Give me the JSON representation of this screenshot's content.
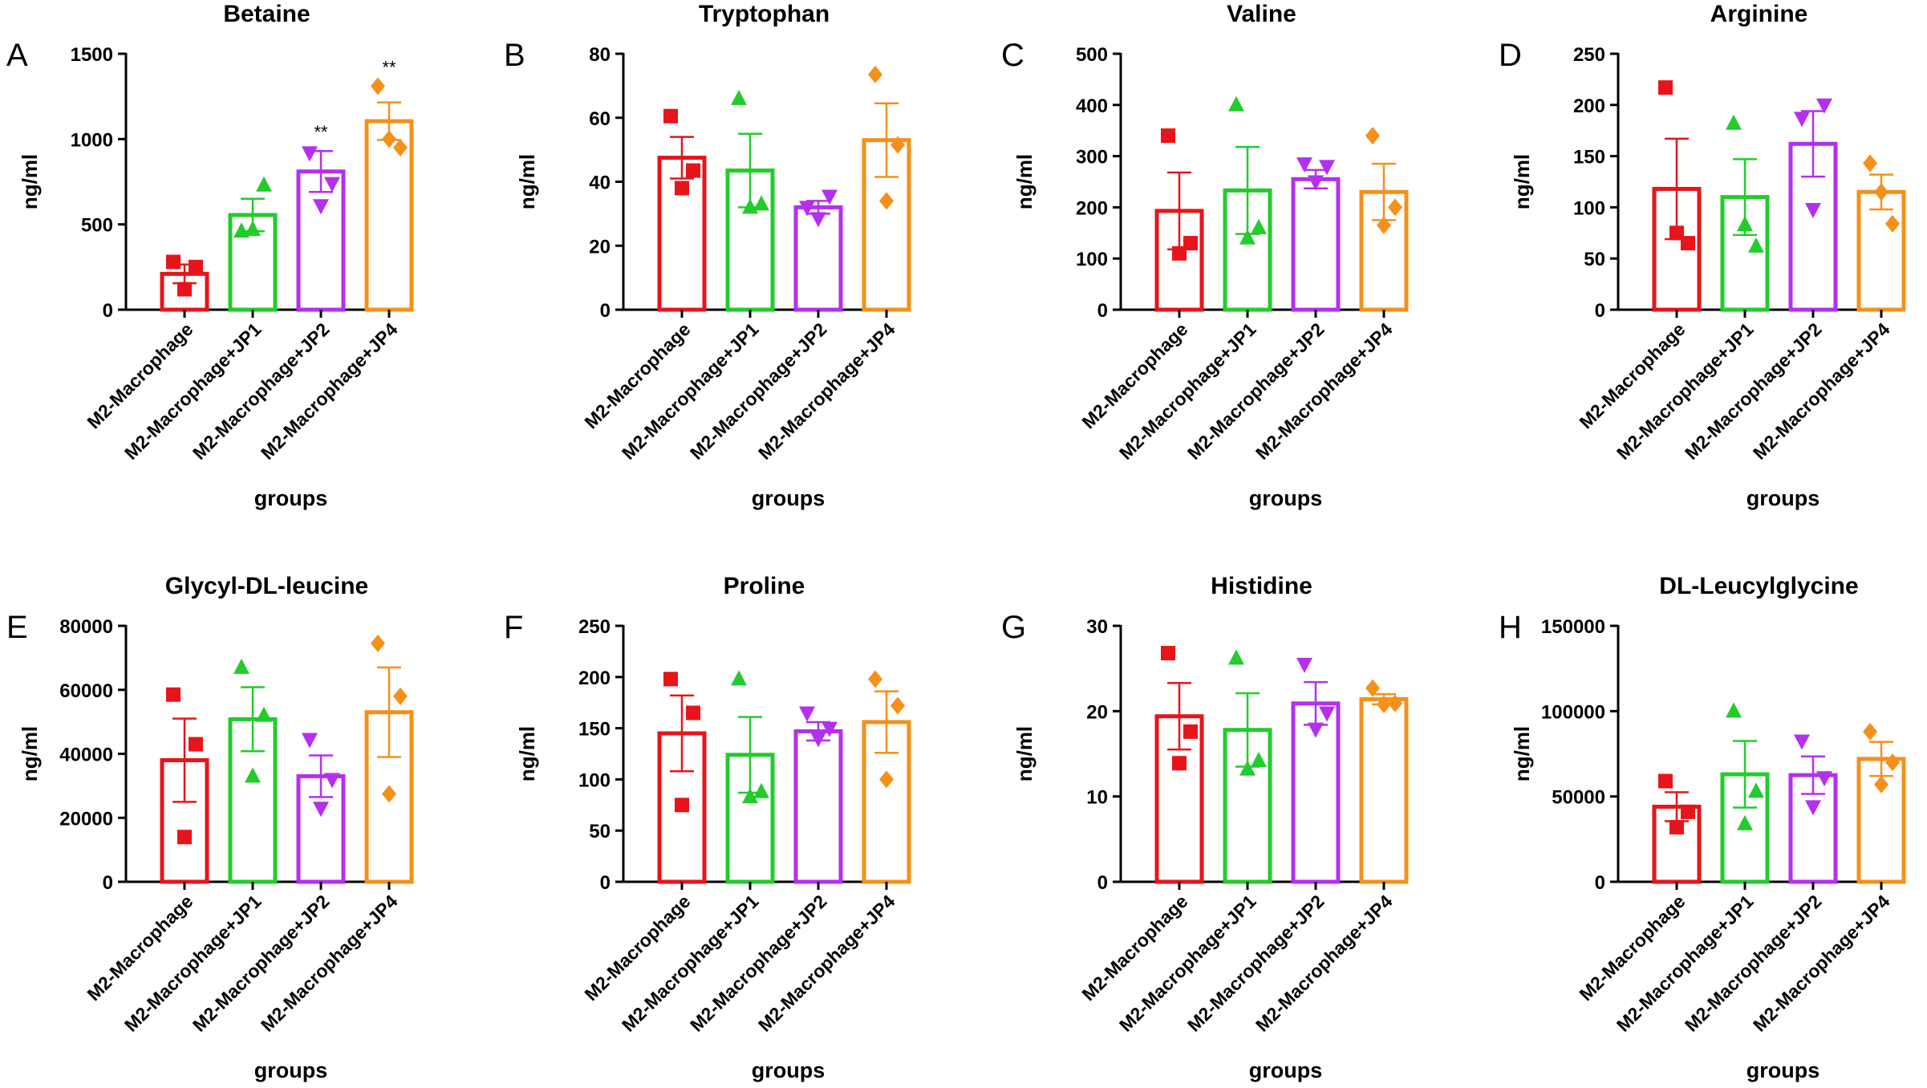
{
  "figure": {
    "group_colors": [
      "#e8141b",
      "#22cc2b",
      "#b42ff0",
      "#f5901a"
    ],
    "marker_shapes": [
      "square",
      "triangle-up",
      "triangle-down",
      "diamond"
    ]
  },
  "chart_data": [
    {
      "panel": "A",
      "type": "bar",
      "title": "Betaine",
      "xlabel": "groups",
      "ylabel": "ng/ml",
      "categories": [
        "M2-Macrophage",
        "M2-Macrophage+JP1",
        "M2-Macrophage+JP2",
        "M2-Macrophage+JP4"
      ],
      "ylim": [
        0,
        1500
      ],
      "yticks": [
        "0",
        "500",
        "1000",
        "1500"
      ],
      "means": [
        210,
        555,
        810,
        1105
      ],
      "sem": [
        55,
        95,
        120,
        110
      ],
      "points": [
        [
          280,
          120,
          250
        ],
        [
          460,
          470,
          730
        ],
        [
          920,
          610,
          740
        ],
        [
          1310,
          1000,
          950
        ]
      ],
      "annotations": [
        "",
        "",
        "**",
        "**"
      ]
    },
    {
      "panel": "B",
      "type": "bar",
      "title": "Tryptophan",
      "xlabel": "groups",
      "ylabel": "ng/ml",
      "categories": [
        "M2-Macrophage",
        "M2-Macrophage+JP1",
        "M2-Macrophage+JP2",
        "M2-Macrophage+JP4"
      ],
      "ylim": [
        0,
        80
      ],
      "yticks": [
        "0",
        "20",
        "40",
        "60",
        "80"
      ],
      "means": [
        47.5,
        43.5,
        32,
        53
      ],
      "sem": [
        6.5,
        11.5,
        2,
        11.5
      ],
      "points": [
        [
          60.5,
          38,
          43.5
        ],
        [
          66,
          32,
          33
        ],
        [
          32,
          28.5,
          35.5
        ],
        [
          73.5,
          34,
          51.5
        ]
      ],
      "annotations": [
        "",
        "",
        "",
        ""
      ]
    },
    {
      "panel": "C",
      "type": "bar",
      "title": "Valine",
      "xlabel": "groups",
      "ylabel": "ng/ml",
      "categories": [
        "M2-Macrophage",
        "M2-Macrophage+JP1",
        "M2-Macrophage+JP2",
        "M2-Macrophage+JP4"
      ],
      "ylim": [
        0,
        500
      ],
      "yticks": [
        "0",
        "100",
        "200",
        "300",
        "400",
        "500"
      ],
      "means": [
        193,
        233,
        255,
        230
      ],
      "sem": [
        75,
        85,
        18,
        55
      ],
      "points": [
        [
          340,
          110,
          130
        ],
        [
          400,
          140,
          160
        ],
        [
          285,
          250,
          280
        ],
        [
          340,
          165,
          200
        ]
      ],
      "annotations": [
        "",
        "",
        "",
        ""
      ]
    },
    {
      "panel": "D",
      "type": "bar",
      "title": "Arginine",
      "xlabel": "groups",
      "ylabel": "ng/ml",
      "categories": [
        "M2-Macrophage",
        "M2-Macrophage+JP1",
        "M2-Macrophage+JP2",
        "M2-Macrophage+JP4"
      ],
      "ylim": [
        0,
        250
      ],
      "yticks": [
        "0",
        "50",
        "100",
        "150",
        "200",
        "250"
      ],
      "means": [
        118,
        110,
        162,
        115
      ],
      "sem": [
        49,
        37,
        32,
        17
      ],
      "points": [
        [
          217,
          75,
          65
        ],
        [
          182,
          83,
          62
        ],
        [
          187,
          98,
          200
        ],
        [
          143,
          115,
          84
        ]
      ],
      "annotations": [
        "",
        "",
        "",
        ""
      ]
    },
    {
      "panel": "E",
      "type": "bar",
      "title": "Glycyl-DL-leucine",
      "xlabel": "groups",
      "ylabel": "ng/ml",
      "categories": [
        "M2-Macrophage",
        "M2-Macrophage+JP1",
        "M2-Macrophage+JP2",
        "M2-Macrophage+JP4"
      ],
      "ylim": [
        0,
        80000
      ],
      "yticks": [
        "0",
        "20000",
        "40000",
        "60000",
        "80000"
      ],
      "means": [
        38000,
        50800,
        33000,
        53000
      ],
      "sem": [
        13000,
        10000,
        6500,
        14000
      ],
      "points": [
        [
          58500,
          14000,
          43000
        ],
        [
          67000,
          33000,
          52000
        ],
        [
          44500,
          23000,
          32000
        ],
        [
          74500,
          27500,
          58000
        ]
      ],
      "annotations": [
        "",
        "",
        "",
        ""
      ]
    },
    {
      "panel": "F",
      "type": "bar",
      "title": "Proline",
      "xlabel": "groups",
      "ylabel": "ng/ml",
      "categories": [
        "M2-Macrophage",
        "M2-Macrophage+JP1",
        "M2-Macrophage+JP2",
        "M2-Macrophage+JP4"
      ],
      "ylim": [
        0,
        250
      ],
      "yticks": [
        "0",
        "50",
        "100",
        "150",
        "200",
        "250"
      ],
      "means": [
        145,
        124,
        147,
        156
      ],
      "sem": [
        37,
        37,
        9,
        30
      ],
      "points": [
        [
          198,
          75,
          165
        ],
        [
          198,
          83,
          88
        ],
        [
          165,
          140,
          150
        ],
        [
          198,
          100,
          172
        ]
      ],
      "annotations": [
        "",
        "",
        "",
        ""
      ]
    },
    {
      "panel": "G",
      "type": "bar",
      "title": "Histidine",
      "xlabel": "groups",
      "ylabel": "ng/ml",
      "categories": [
        "M2-Macrophage",
        "M2-Macrophage+JP1",
        "M2-Macrophage+JP2",
        "M2-Macrophage+JP4"
      ],
      "ylim": [
        0,
        30
      ],
      "yticks": [
        "0",
        "10",
        "20",
        "30"
      ],
      "means": [
        19.4,
        17.8,
        20.9,
        21.4
      ],
      "sem": [
        3.9,
        4.3,
        2.5,
        0.6
      ],
      "points": [
        [
          26.8,
          13.9,
          17.6
        ],
        [
          26.2,
          13.2,
          14.2
        ],
        [
          25.5,
          17.9,
          19.8
        ],
        [
          22.7,
          20.8,
          20.9
        ]
      ],
      "annotations": [
        "",
        "",
        "",
        ""
      ]
    },
    {
      "panel": "H",
      "type": "bar",
      "title": "DL-Leucylglycine",
      "xlabel": "groups",
      "ylabel": "ng/ml",
      "categories": [
        "M2-Macrophage",
        "M2-Macrophage+JP1",
        "M2-Macrophage+JP2",
        "M2-Macrophage+JP4"
      ],
      "ylim": [
        0,
        150000
      ],
      "yticks": [
        "0",
        "50000",
        "100000",
        "150000"
      ],
      "means": [
        44000,
        63000,
        62500,
        72000
      ],
      "sem": [
        8500,
        19500,
        11000,
        10000
      ],
      "points": [
        [
          59000,
          32000,
          41000
        ],
        [
          100000,
          34000,
          53000
        ],
        [
          82500,
          44000,
          61000
        ],
        [
          88000,
          57000,
          70000
        ]
      ],
      "annotations": [
        "",
        "",
        "",
        ""
      ]
    }
  ]
}
